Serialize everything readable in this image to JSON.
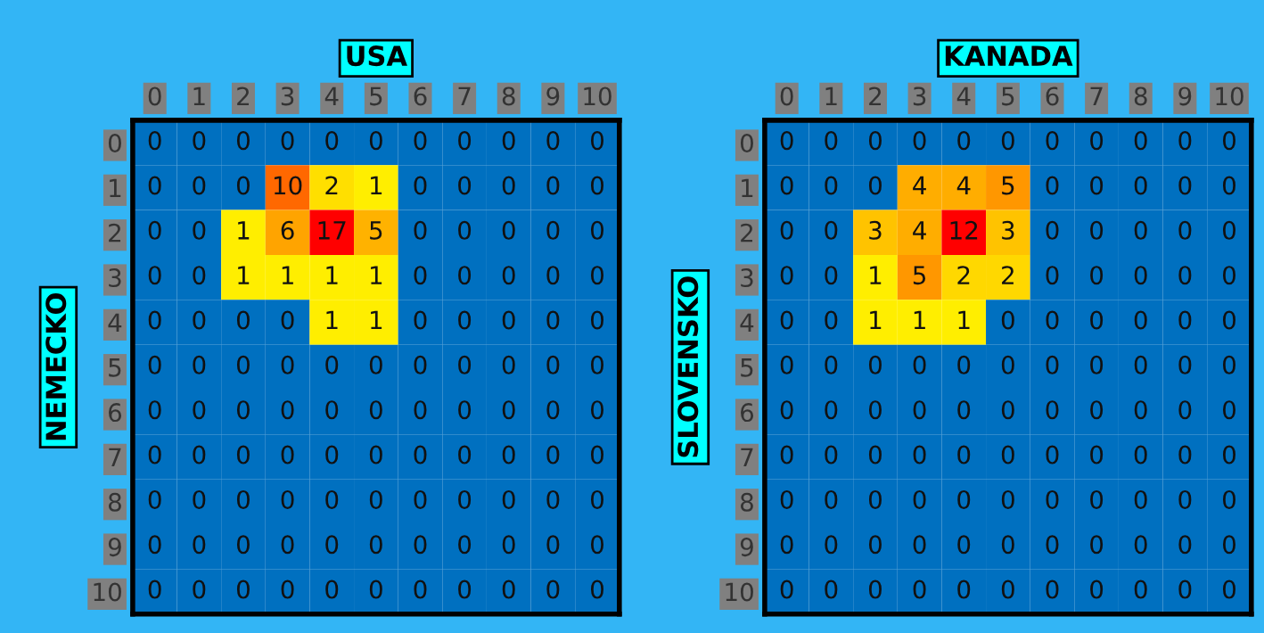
{
  "chart_data": [
    {
      "type": "heatmap",
      "title": "USA",
      "ylabel": "NEMECKO",
      "categories": [
        "0",
        "1",
        "2",
        "3",
        "4",
        "5",
        "6",
        "7",
        "8",
        "9",
        "10"
      ],
      "y_categories": [
        "0",
        "1",
        "2",
        "3",
        "4",
        "5",
        "6",
        "7",
        "8",
        "9",
        "10"
      ],
      "cells": [
        [
          0,
          0,
          0,
          0,
          0,
          0,
          0,
          0,
          0,
          0,
          0
        ],
        [
          0,
          0,
          0,
          10,
          2,
          1,
          0,
          0,
          0,
          0,
          0
        ],
        [
          0,
          0,
          1,
          6,
          17,
          5,
          0,
          0,
          0,
          0,
          0
        ],
        [
          0,
          0,
          1,
          1,
          1,
          1,
          0,
          0,
          0,
          0,
          0
        ],
        [
          0,
          0,
          0,
          0,
          1,
          1,
          0,
          0,
          0,
          0,
          0
        ],
        [
          0,
          0,
          0,
          0,
          0,
          0,
          0,
          0,
          0,
          0,
          0
        ],
        [
          0,
          0,
          0,
          0,
          0,
          0,
          0,
          0,
          0,
          0,
          0
        ],
        [
          0,
          0,
          0,
          0,
          0,
          0,
          0,
          0,
          0,
          0,
          0
        ],
        [
          0,
          0,
          0,
          0,
          0,
          0,
          0,
          0,
          0,
          0,
          0
        ],
        [
          0,
          0,
          0,
          0,
          0,
          0,
          0,
          0,
          0,
          0,
          0
        ],
        [
          0,
          0,
          0,
          0,
          0,
          0,
          0,
          0,
          0,
          0,
          0
        ]
      ],
      "colors": [
        "#0070c0",
        "#ffee00",
        "#ff0000"
      ],
      "data_labels": true,
      "grid": false
    },
    {
      "type": "heatmap",
      "title": "KANADA",
      "ylabel": "SLOVENSKO",
      "categories": [
        "0",
        "1",
        "2",
        "3",
        "4",
        "5",
        "6",
        "7",
        "8",
        "9",
        "10"
      ],
      "y_categories": [
        "0",
        "1",
        "2",
        "3",
        "4",
        "5",
        "6",
        "7",
        "8",
        "9",
        "10"
      ],
      "cells": [
        [
          0,
          0,
          0,
          0,
          0,
          0,
          0,
          0,
          0,
          0,
          0
        ],
        [
          0,
          0,
          0,
          4,
          4,
          5,
          0,
          0,
          0,
          0,
          0
        ],
        [
          0,
          0,
          3,
          4,
          12,
          3,
          0,
          0,
          0,
          0,
          0
        ],
        [
          0,
          0,
          1,
          5,
          2,
          2,
          0,
          0,
          0,
          0,
          0
        ],
        [
          0,
          0,
          1,
          1,
          1,
          0,
          0,
          0,
          0,
          0,
          0
        ],
        [
          0,
          0,
          0,
          0,
          0,
          0,
          0,
          0,
          0,
          0,
          0
        ],
        [
          0,
          0,
          0,
          0,
          0,
          0,
          0,
          0,
          0,
          0,
          0
        ],
        [
          0,
          0,
          0,
          0,
          0,
          0,
          0,
          0,
          0,
          0,
          0
        ],
        [
          0,
          0,
          0,
          0,
          0,
          0,
          0,
          0,
          0,
          0,
          0
        ],
        [
          0,
          0,
          0,
          0,
          0,
          0,
          0,
          0,
          0,
          0,
          0
        ],
        [
          0,
          0,
          0,
          0,
          0,
          0,
          0,
          0,
          0,
          0,
          0
        ]
      ],
      "colors": [
        "#0070c0",
        "#ffee00",
        "#ff0000"
      ],
      "data_labels": true,
      "grid": false
    }
  ]
}
